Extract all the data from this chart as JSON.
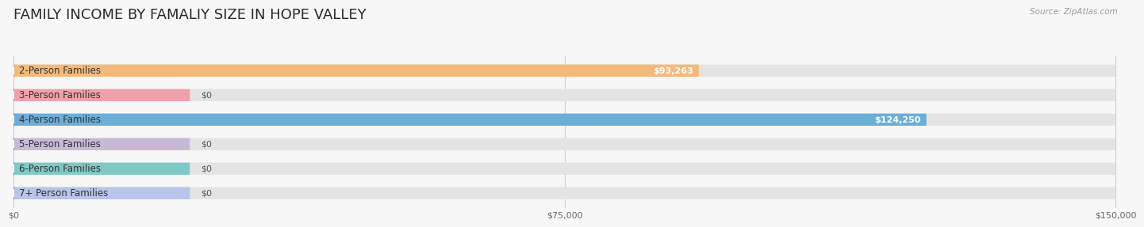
{
  "title": "FAMILY INCOME BY FAMALIY SIZE IN HOPE VALLEY",
  "source_text": "Source: ZipAtlas.com",
  "categories": [
    "2-Person Families",
    "3-Person Families",
    "4-Person Families",
    "5-Person Families",
    "6-Person Families",
    "7+ Person Families"
  ],
  "values": [
    93263,
    0,
    124250,
    0,
    0,
    0
  ],
  "bar_colors": [
    "#f5b97a",
    "#f0a0a8",
    "#6baed6",
    "#c9b8d8",
    "#7fc9c4",
    "#b8c4e8"
  ],
  "dot_colors": [
    "#f0a050",
    "#e87888",
    "#5090cc",
    "#a880c8",
    "#40b0a0",
    "#8890cc"
  ],
  "max_value": 150000,
  "x_ticks": [
    0,
    75000,
    150000
  ],
  "x_tick_labels": [
    "$0",
    "$75,000",
    "$150,000"
  ],
  "background_color": "#f7f7f7",
  "bar_bg_color": "#e4e4e4",
  "value_labels": [
    "$93,263",
    "$0",
    "$124,250",
    "$0",
    "$0",
    "$0"
  ],
  "title_fontsize": 13,
  "label_fontsize": 8.5,
  "value_fontsize": 8
}
